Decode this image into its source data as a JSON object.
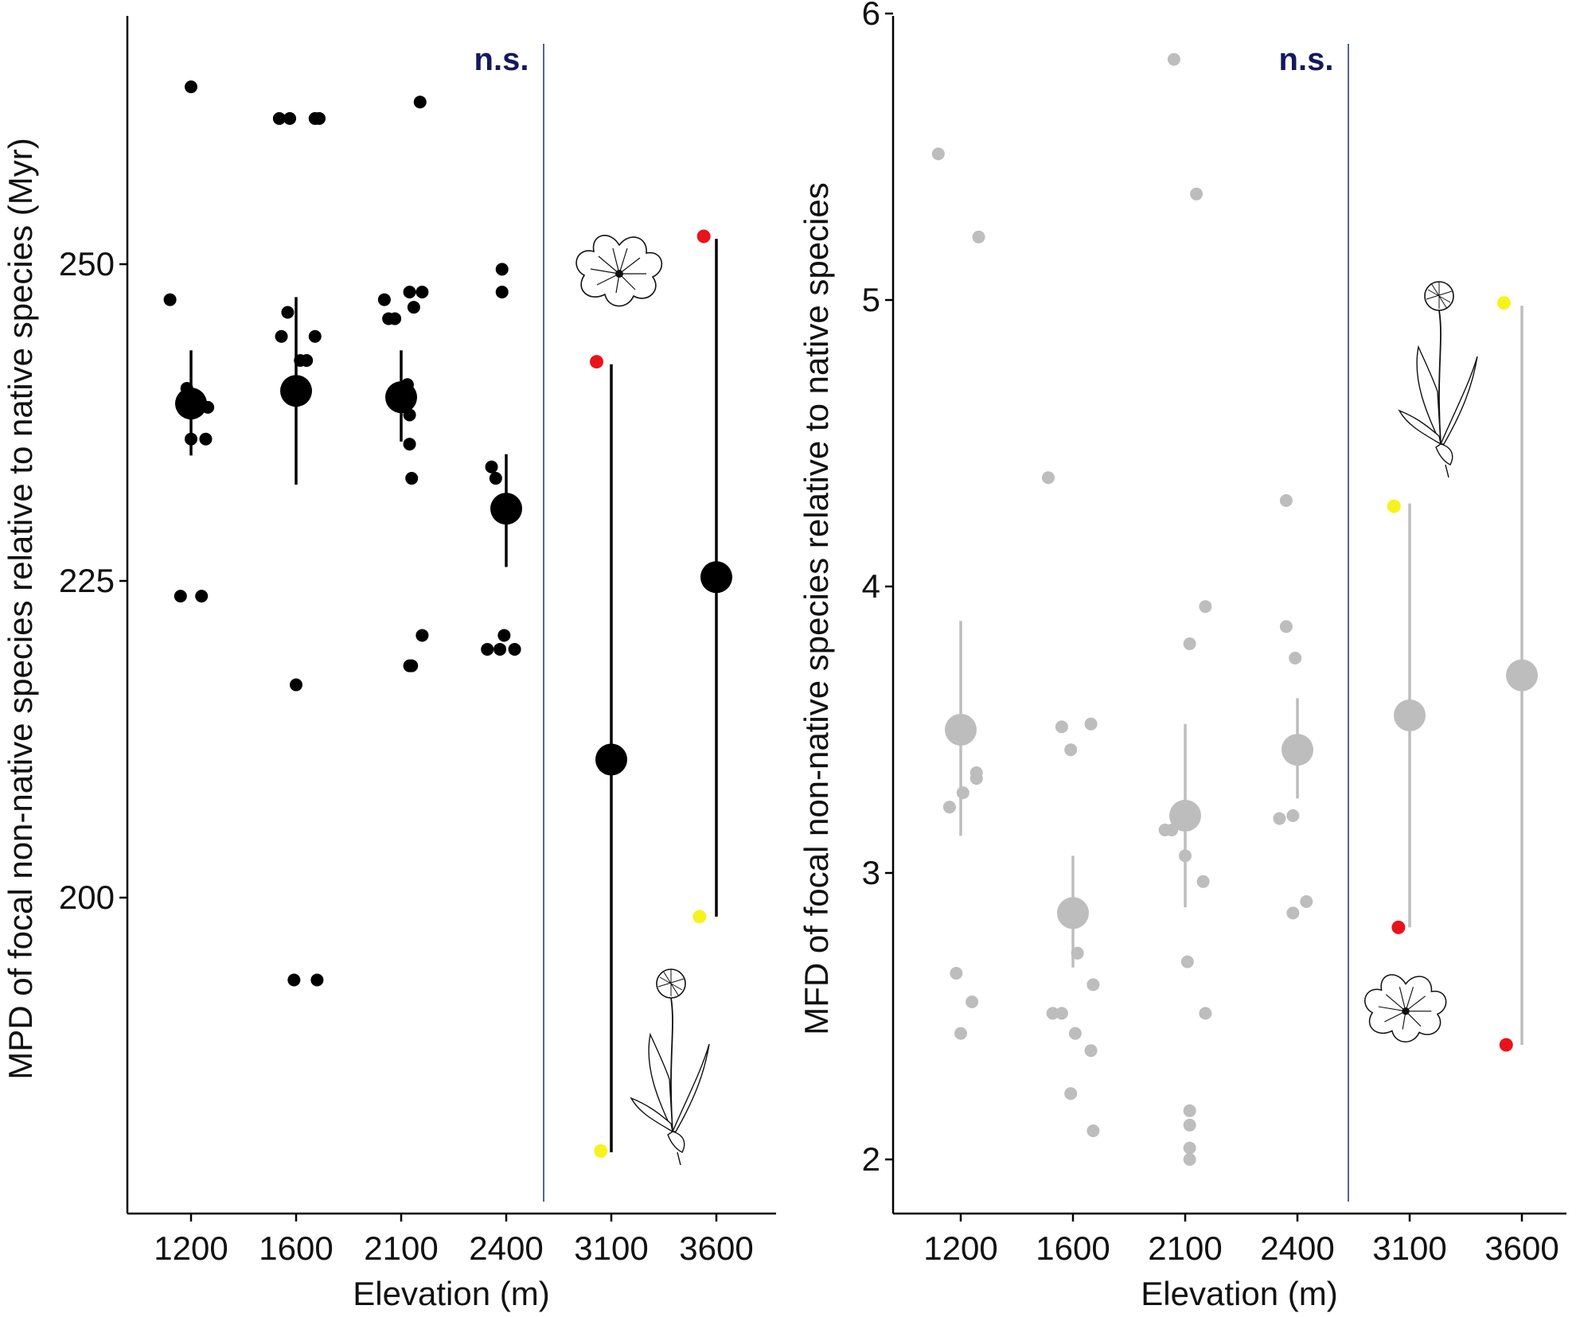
{
  "colors": {
    "left_series": "#000000",
    "right_series": "#bdbdbd",
    "divider": "#2b3f73",
    "significance_text": "#14195c",
    "highlight_red": "#e8141c",
    "highlight_yellow": "#f7f21e",
    "axis": "#000000"
  },
  "icons": [
    "flower-head-icon",
    "dandelion-plant-icon"
  ],
  "chart_data": [
    {
      "type": "scatter",
      "id": "left",
      "xlabel": "Elevation (m)",
      "ylabel": "MPD of focal non-native species relative to native species (Myr)",
      "categories": [
        "1200",
        "1600",
        "2100",
        "2400",
        "3100",
        "3600"
      ],
      "ylim": [
        177,
        268
      ],
      "yticks": [
        "200",
        "225",
        "250"
      ],
      "annotation": "n.s.",
      "divider_between": [
        "2400",
        "3100"
      ],
      "grid": false,
      "legend": "none",
      "points": [
        {
          "cat": 0,
          "dx": 0.0,
          "y": 264.0
        },
        {
          "cat": 0,
          "dx": -0.2,
          "y": 247.2
        },
        {
          "cat": 0,
          "dx": -0.04,
          "y": 240.2
        },
        {
          "cat": 0,
          "dx": 0.16,
          "y": 238.7
        },
        {
          "cat": 0,
          "dx": 0.0,
          "y": 236.2
        },
        {
          "cat": 0,
          "dx": 0.14,
          "y": 236.2
        },
        {
          "cat": 0,
          "dx": -0.1,
          "y": 223.8
        },
        {
          "cat": 0,
          "dx": 0.1,
          "y": 223.8
        },
        {
          "cat": 1,
          "dx": -0.16,
          "y": 261.5
        },
        {
          "cat": 1,
          "dx": -0.06,
          "y": 261.5
        },
        {
          "cat": 1,
          "dx": 0.18,
          "y": 261.5
        },
        {
          "cat": 1,
          "dx": 0.22,
          "y": 261.5
        },
        {
          "cat": 1,
          "dx": -0.08,
          "y": 246.2
        },
        {
          "cat": 1,
          "dx": -0.14,
          "y": 244.3
        },
        {
          "cat": 1,
          "dx": 0.18,
          "y": 244.3
        },
        {
          "cat": 1,
          "dx": 0.04,
          "y": 242.4
        },
        {
          "cat": 1,
          "dx": 0.1,
          "y": 242.4
        },
        {
          "cat": 1,
          "dx": 0.0,
          "y": 216.8
        },
        {
          "cat": 1,
          "dx": -0.02,
          "y": 193.5
        },
        {
          "cat": 1,
          "dx": 0.2,
          "y": 193.5
        },
        {
          "cat": 2,
          "dx": 0.18,
          "y": 262.8
        },
        {
          "cat": 2,
          "dx": -0.16,
          "y": 247.2
        },
        {
          "cat": 2,
          "dx": 0.08,
          "y": 247.8
        },
        {
          "cat": 2,
          "dx": 0.2,
          "y": 247.8
        },
        {
          "cat": 2,
          "dx": -0.12,
          "y": 245.7
        },
        {
          "cat": 2,
          "dx": -0.06,
          "y": 245.7
        },
        {
          "cat": 2,
          "dx": 0.12,
          "y": 246.6
        },
        {
          "cat": 2,
          "dx": 0.06,
          "y": 240.5
        },
        {
          "cat": 2,
          "dx": 0.08,
          "y": 238.1
        },
        {
          "cat": 2,
          "dx": 0.08,
          "y": 235.8
        },
        {
          "cat": 2,
          "dx": 0.1,
          "y": 233.1
        },
        {
          "cat": 2,
          "dx": 0.2,
          "y": 220.7
        },
        {
          "cat": 2,
          "dx": 0.08,
          "y": 218.3
        },
        {
          "cat": 2,
          "dx": 0.1,
          "y": 218.3
        },
        {
          "cat": 3,
          "dx": -0.04,
          "y": 249.6
        },
        {
          "cat": 3,
          "dx": -0.04,
          "y": 247.8
        },
        {
          "cat": 3,
          "dx": -0.14,
          "y": 234.0
        },
        {
          "cat": 3,
          "dx": -0.1,
          "y": 233.1
        },
        {
          "cat": 3,
          "dx": -0.02,
          "y": 220.7
        },
        {
          "cat": 3,
          "dx": -0.18,
          "y": 219.6
        },
        {
          "cat": 3,
          "dx": -0.06,
          "y": 219.6
        },
        {
          "cat": 3,
          "dx": 0.08,
          "y": 219.6
        }
      ],
      "means": [
        {
          "cat": 0,
          "y": 239.0,
          "lo": 234.9,
          "hi": 243.2
        },
        {
          "cat": 1,
          "y": 240.0,
          "lo": 232.6,
          "hi": 247.4
        },
        {
          "cat": 2,
          "y": 239.5,
          "lo": 236.0,
          "hi": 243.2
        },
        {
          "cat": 3,
          "y": 230.7,
          "lo": 226.1,
          "hi": 235.0
        },
        {
          "cat": 4,
          "y": 210.9,
          "lo": 179.9,
          "hi": 242.1
        },
        {
          "cat": 5,
          "y": 225.3,
          "lo": 198.5,
          "hi": 252.0
        }
      ],
      "highlights": [
        {
          "cat": 4,
          "dx": -0.14,
          "y": 242.3,
          "color": "red"
        },
        {
          "cat": 4,
          "dx": -0.1,
          "y": 180.0,
          "color": "yellow"
        },
        {
          "cat": 5,
          "dx": -0.12,
          "y": 252.2,
          "color": "red"
        },
        {
          "cat": 5,
          "dx": -0.16,
          "y": 198.5,
          "color": "yellow"
        }
      ]
    },
    {
      "type": "scatter",
      "id": "right",
      "xlabel": "Elevation (m)",
      "ylabel": "MFD of focal non-native species relative to native species",
      "categories": [
        "1200",
        "1600",
        "2100",
        "2400",
        "3100",
        "3600"
      ],
      "ylim": [
        1.82,
        6.05
      ],
      "yticks": [
        "2",
        "3",
        "4",
        "5",
        "6"
      ],
      "annotation": "n.s.",
      "divider_between": [
        "2400",
        "3100"
      ],
      "grid": false,
      "legend": "none",
      "points": [
        {
          "cat": 0,
          "dx": -0.2,
          "y": 5.51
        },
        {
          "cat": 0,
          "dx": 0.16,
          "y": 5.22
        },
        {
          "cat": 0,
          "dx": 0.14,
          "y": 3.35
        },
        {
          "cat": 0,
          "dx": 0.14,
          "y": 3.33
        },
        {
          "cat": 0,
          "dx": 0.02,
          "y": 3.28
        },
        {
          "cat": 0,
          "dx": -0.1,
          "y": 3.23
        },
        {
          "cat": 0,
          "dx": -0.04,
          "y": 2.65
        },
        {
          "cat": 0,
          "dx": 0.1,
          "y": 2.55
        },
        {
          "cat": 0,
          "dx": 0.0,
          "y": 2.44
        },
        {
          "cat": 1,
          "dx": -0.22,
          "y": 4.38
        },
        {
          "cat": 1,
          "dx": -0.1,
          "y": 3.51
        },
        {
          "cat": 1,
          "dx": 0.16,
          "y": 3.52
        },
        {
          "cat": 1,
          "dx": -0.02,
          "y": 3.43
        },
        {
          "cat": 1,
          "dx": 0.04,
          "y": 2.72
        },
        {
          "cat": 1,
          "dx": 0.18,
          "y": 2.61
        },
        {
          "cat": 1,
          "dx": -0.18,
          "y": 2.51
        },
        {
          "cat": 1,
          "dx": -0.1,
          "y": 2.51
        },
        {
          "cat": 1,
          "dx": 0.02,
          "y": 2.44
        },
        {
          "cat": 1,
          "dx": 0.16,
          "y": 2.38
        },
        {
          "cat": 1,
          "dx": -0.02,
          "y": 2.23
        },
        {
          "cat": 1,
          "dx": 0.18,
          "y": 2.1
        },
        {
          "cat": 2,
          "dx": -0.1,
          "y": 5.84
        },
        {
          "cat": 2,
          "dx": 0.1,
          "y": 5.37
        },
        {
          "cat": 2,
          "dx": 0.18,
          "y": 3.93
        },
        {
          "cat": 2,
          "dx": 0.04,
          "y": 3.8
        },
        {
          "cat": 2,
          "dx": -0.18,
          "y": 3.15
        },
        {
          "cat": 2,
          "dx": -0.12,
          "y": 3.15
        },
        {
          "cat": 2,
          "dx": 0.0,
          "y": 3.06
        },
        {
          "cat": 2,
          "dx": 0.16,
          "y": 2.97
        },
        {
          "cat": 2,
          "dx": 0.02,
          "y": 2.69
        },
        {
          "cat": 2,
          "dx": 0.18,
          "y": 2.51
        },
        {
          "cat": 2,
          "dx": 0.04,
          "y": 2.17
        },
        {
          "cat": 2,
          "dx": 0.04,
          "y": 2.12
        },
        {
          "cat": 2,
          "dx": 0.04,
          "y": 2.04
        },
        {
          "cat": 2,
          "dx": 0.04,
          "y": 2.0
        },
        {
          "cat": 3,
          "dx": -0.1,
          "y": 4.3
        },
        {
          "cat": 3,
          "dx": -0.1,
          "y": 3.86
        },
        {
          "cat": 3,
          "dx": -0.02,
          "y": 3.75
        },
        {
          "cat": 3,
          "dx": -0.16,
          "y": 3.19
        },
        {
          "cat": 3,
          "dx": -0.04,
          "y": 3.2
        },
        {
          "cat": 3,
          "dx": 0.08,
          "y": 2.9
        },
        {
          "cat": 3,
          "dx": -0.04,
          "y": 2.86
        }
      ],
      "means": [
        {
          "cat": 0,
          "y": 3.5,
          "lo": 3.13,
          "hi": 3.88
        },
        {
          "cat": 1,
          "y": 2.86,
          "lo": 2.67,
          "hi": 3.06
        },
        {
          "cat": 2,
          "y": 3.2,
          "lo": 2.88,
          "hi": 3.52
        },
        {
          "cat": 3,
          "y": 3.43,
          "lo": 3.26,
          "hi": 3.61
        },
        {
          "cat": 4,
          "y": 3.55,
          "lo": 2.81,
          "hi": 4.29
        },
        {
          "cat": 5,
          "y": 3.69,
          "lo": 2.4,
          "hi": 4.98
        }
      ],
      "highlights": [
        {
          "cat": 4,
          "dx": -0.14,
          "y": 4.28,
          "color": "yellow"
        },
        {
          "cat": 4,
          "dx": -0.1,
          "y": 2.81,
          "color": "red"
        },
        {
          "cat": 5,
          "dx": -0.16,
          "y": 4.99,
          "color": "yellow"
        },
        {
          "cat": 5,
          "dx": -0.14,
          "y": 2.4,
          "color": "red"
        }
      ]
    }
  ]
}
